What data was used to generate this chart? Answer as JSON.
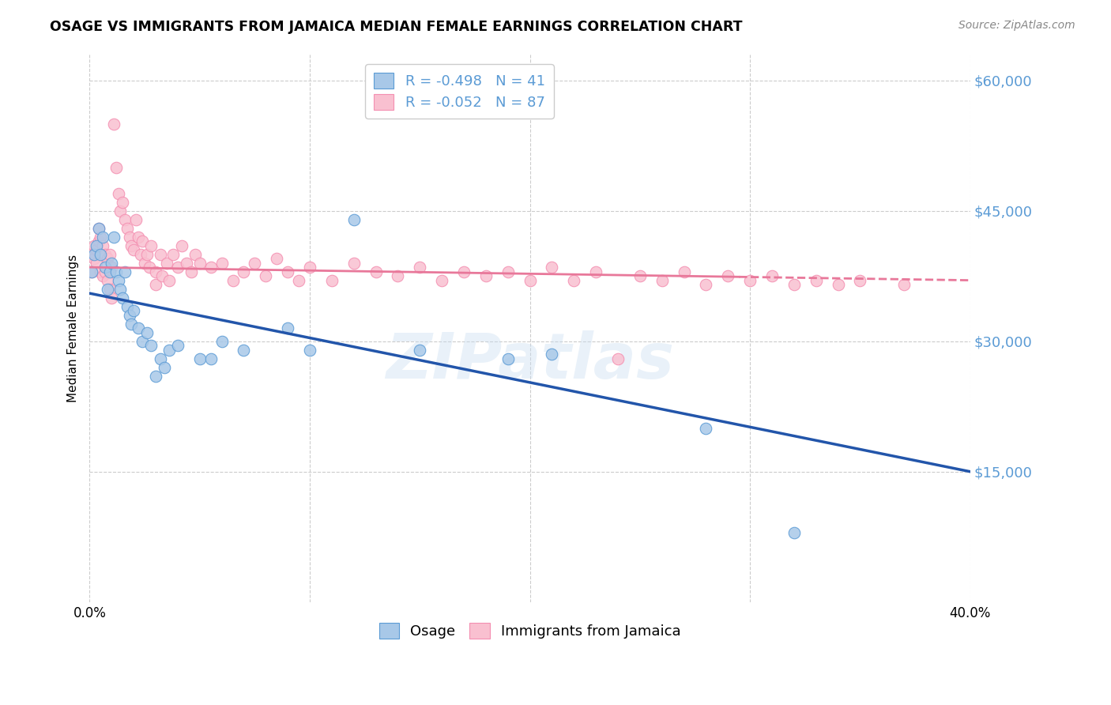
{
  "title": "OSAGE VS IMMIGRANTS FROM JAMAICA MEDIAN FEMALE EARNINGS CORRELATION CHART",
  "source": "Source: ZipAtlas.com",
  "ylabel": "Median Female Earnings",
  "yticks": [
    15000,
    30000,
    45000,
    60000
  ],
  "ytick_labels": [
    "$15,000",
    "$30,000",
    "$45,000",
    "$60,000"
  ],
  "legend_labels_top_1": "R = -0.498   N = 41",
  "legend_labels_top_2": "R = -0.052   N = 87",
  "legend_labels_bottom": [
    "Osage",
    "Immigrants from Jamaica"
  ],
  "osage_scatter_fill": "#a8c8e8",
  "osage_scatter_edge": "#5b9bd5",
  "jamaica_scatter_fill": "#f9c0d0",
  "jamaica_scatter_edge": "#f48fb1",
  "trend_osage_color": "#2255aa",
  "trend_jamaica_color": "#e8789a",
  "watermark": "ZIPatlas",
  "xmin": 0.0,
  "xmax": 0.4,
  "ymin": 0,
  "ymax": 63000,
  "osage_color_legend": "#a8c8e8",
  "jamaica_color_legend": "#f9c0d0",
  "osage_points": [
    [
      0.001,
      38000
    ],
    [
      0.002,
      40000
    ],
    [
      0.003,
      41000
    ],
    [
      0.004,
      43000
    ],
    [
      0.005,
      40000
    ],
    [
      0.006,
      42000
    ],
    [
      0.007,
      38500
    ],
    [
      0.008,
      36000
    ],
    [
      0.009,
      38000
    ],
    [
      0.01,
      39000
    ],
    [
      0.011,
      42000
    ],
    [
      0.012,
      38000
    ],
    [
      0.013,
      37000
    ],
    [
      0.014,
      36000
    ],
    [
      0.015,
      35000
    ],
    [
      0.016,
      38000
    ],
    [
      0.017,
      34000
    ],
    [
      0.018,
      33000
    ],
    [
      0.019,
      32000
    ],
    [
      0.02,
      33500
    ],
    [
      0.022,
      31500
    ],
    [
      0.024,
      30000
    ],
    [
      0.026,
      31000
    ],
    [
      0.028,
      29500
    ],
    [
      0.03,
      26000
    ],
    [
      0.032,
      28000
    ],
    [
      0.034,
      27000
    ],
    [
      0.036,
      29000
    ],
    [
      0.04,
      29500
    ],
    [
      0.05,
      28000
    ],
    [
      0.055,
      28000
    ],
    [
      0.06,
      30000
    ],
    [
      0.07,
      29000
    ],
    [
      0.09,
      31500
    ],
    [
      0.1,
      29000
    ],
    [
      0.12,
      44000
    ],
    [
      0.15,
      29000
    ],
    [
      0.19,
      28000
    ],
    [
      0.21,
      28500
    ],
    [
      0.28,
      20000
    ],
    [
      0.32,
      8000
    ]
  ],
  "jamaica_points": [
    [
      0.001,
      40000
    ],
    [
      0.001,
      38000
    ],
    [
      0.002,
      41000
    ],
    [
      0.002,
      39500
    ],
    [
      0.003,
      40500
    ],
    [
      0.003,
      39000
    ],
    [
      0.004,
      43000
    ],
    [
      0.004,
      41500
    ],
    [
      0.005,
      42000
    ],
    [
      0.005,
      38000
    ],
    [
      0.006,
      41000
    ],
    [
      0.006,
      37500
    ],
    [
      0.007,
      40000
    ],
    [
      0.007,
      38000
    ],
    [
      0.008,
      39500
    ],
    [
      0.008,
      37000
    ],
    [
      0.009,
      40000
    ],
    [
      0.009,
      36000
    ],
    [
      0.01,
      38500
    ],
    [
      0.01,
      35000
    ],
    [
      0.011,
      55000
    ],
    [
      0.012,
      50000
    ],
    [
      0.013,
      47000
    ],
    [
      0.014,
      45000
    ],
    [
      0.015,
      46000
    ],
    [
      0.016,
      44000
    ],
    [
      0.017,
      43000
    ],
    [
      0.018,
      42000
    ],
    [
      0.019,
      41000
    ],
    [
      0.02,
      40500
    ],
    [
      0.021,
      44000
    ],
    [
      0.022,
      42000
    ],
    [
      0.023,
      40000
    ],
    [
      0.024,
      41500
    ],
    [
      0.025,
      39000
    ],
    [
      0.026,
      40000
    ],
    [
      0.027,
      38500
    ],
    [
      0.028,
      41000
    ],
    [
      0.03,
      38000
    ],
    [
      0.03,
      36500
    ],
    [
      0.032,
      40000
    ],
    [
      0.033,
      37500
    ],
    [
      0.035,
      39000
    ],
    [
      0.036,
      37000
    ],
    [
      0.038,
      40000
    ],
    [
      0.04,
      38500
    ],
    [
      0.042,
      41000
    ],
    [
      0.044,
      39000
    ],
    [
      0.046,
      38000
    ],
    [
      0.048,
      40000
    ],
    [
      0.05,
      39000
    ],
    [
      0.055,
      38500
    ],
    [
      0.06,
      39000
    ],
    [
      0.065,
      37000
    ],
    [
      0.07,
      38000
    ],
    [
      0.075,
      39000
    ],
    [
      0.08,
      37500
    ],
    [
      0.085,
      39500
    ],
    [
      0.09,
      38000
    ],
    [
      0.095,
      37000
    ],
    [
      0.1,
      38500
    ],
    [
      0.11,
      37000
    ],
    [
      0.12,
      39000
    ],
    [
      0.13,
      38000
    ],
    [
      0.14,
      37500
    ],
    [
      0.15,
      38500
    ],
    [
      0.16,
      37000
    ],
    [
      0.17,
      38000
    ],
    [
      0.18,
      37500
    ],
    [
      0.19,
      38000
    ],
    [
      0.2,
      37000
    ],
    [
      0.21,
      38500
    ],
    [
      0.22,
      37000
    ],
    [
      0.23,
      38000
    ],
    [
      0.24,
      28000
    ],
    [
      0.25,
      37500
    ],
    [
      0.26,
      37000
    ],
    [
      0.27,
      38000
    ],
    [
      0.28,
      36500
    ],
    [
      0.29,
      37500
    ],
    [
      0.3,
      37000
    ],
    [
      0.31,
      37500
    ],
    [
      0.32,
      36500
    ],
    [
      0.33,
      37000
    ],
    [
      0.34,
      36500
    ],
    [
      0.35,
      37000
    ],
    [
      0.37,
      36500
    ]
  ]
}
